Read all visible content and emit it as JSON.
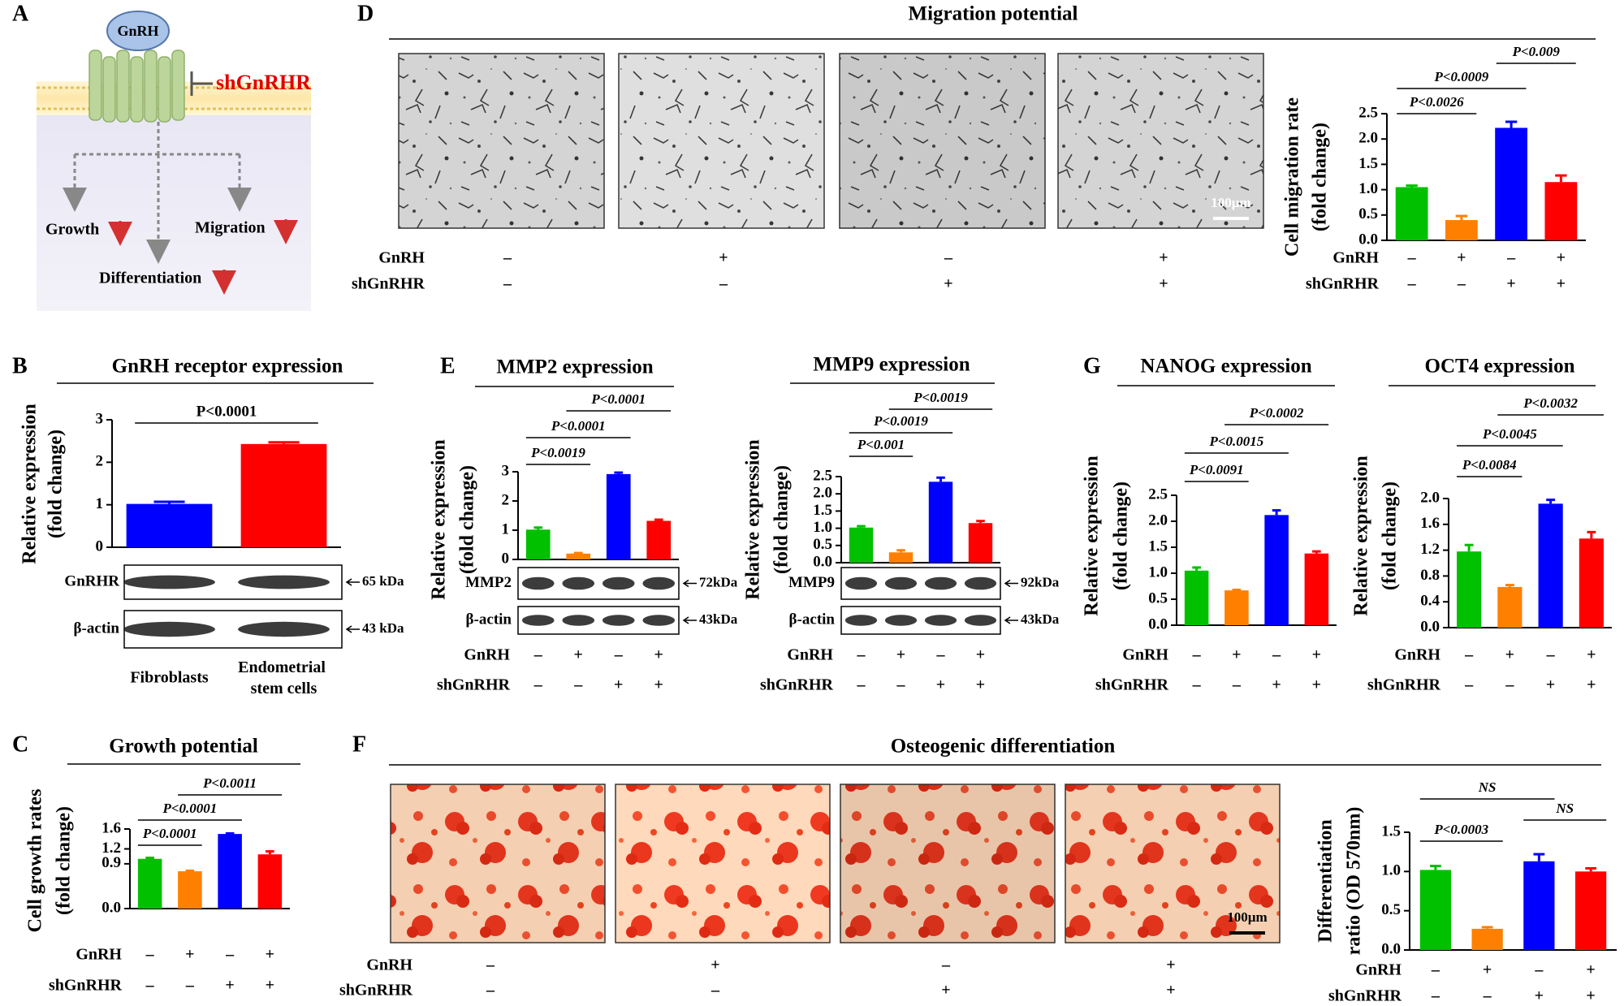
{
  "panel_labels": [
    "A",
    "B",
    "C",
    "D",
    "E",
    "F",
    "G"
  ],
  "schematic": {
    "ligand": "GnRH",
    "inhibitor": "shGnRHR",
    "outcomes": [
      "Growth",
      "Migration",
      "Differentiation"
    ]
  },
  "chart_data": [
    {
      "type": "bar",
      "title": "GnRH receptor expression",
      "ylabel": [
        "Relative expression",
        "(fold change)"
      ],
      "categories": [
        "Fibroblasts",
        "Endometrial stem cells"
      ],
      "values": [
        1.02,
        2.43
      ],
      "errors": [
        0.05,
        0.04
      ],
      "colors": [
        "#0000ff",
        "#ff0000"
      ],
      "ylim": [
        0,
        3
      ],
      "yticks": [
        0,
        1,
        2,
        3
      ],
      "annotations": [
        {
          "label": "P<0.0001",
          "from": 0,
          "to": 1
        }
      ],
      "annotation_italic": false,
      "blot": {
        "rows": [
          "GnRHR",
          "β-actin"
        ],
        "sizes": [
          "65 kDa",
          "43 kDa"
        ]
      }
    },
    {
      "type": "bar",
      "title": "Growth potential",
      "ylabel": [
        "Cell growth rates",
        "(fold change)"
      ],
      "values": [
        1.0,
        0.75,
        1.5,
        1.09
      ],
      "errors": [
        0.02,
        0.01,
        0.01,
        0.06
      ],
      "colors": [
        "#00c000",
        "#ff8000",
        "#0000ff",
        "#ff0000"
      ],
      "ylim": [
        0,
        1.6
      ],
      "yticks": [
        {
          "value": 0,
          "label": "0.0"
        },
        0.9,
        1.2,
        1.6
      ],
      "annotations": [
        {
          "label": "P<0.0001",
          "from": 0,
          "to": 1
        },
        {
          "label": "P<0.0001",
          "from": 0,
          "to": 2
        },
        {
          "label": "P<0.0011",
          "from": 1,
          "to": 3
        }
      ],
      "annotation_italic": true,
      "treatments": [
        {
          "name": "GnRH",
          "signs": [
            "–",
            "+",
            "–",
            "+"
          ]
        },
        {
          "name": "shGnRHR",
          "signs": [
            "–",
            "–",
            "+",
            "+"
          ]
        }
      ]
    },
    {
      "type": "bar",
      "title": "Migration potential",
      "scale_bar": "100µm",
      "ylabel": [
        "Cell migration rate",
        "(fold change)"
      ],
      "values": [
        1.05,
        0.4,
        2.22,
        1.15
      ],
      "errors": [
        0.03,
        0.08,
        0.12,
        0.13
      ],
      "colors": [
        "#00c000",
        "#ff8000",
        "#0000ff",
        "#ff0000"
      ],
      "ylim": [
        0,
        2.5
      ],
      "yticks": [
        {
          "value": 0,
          "label": "0.0"
        },
        0.5,
        {
          "value": 1,
          "label": "1.0"
        },
        1.5,
        {
          "value": 2,
          "label": "2.0"
        },
        2.5
      ],
      "annotations": [
        {
          "label": "P<0.0026",
          "from": 0,
          "to": 1
        },
        {
          "label": "P<0.0009",
          "from": 0,
          "to": 2
        },
        {
          "label": "P<0.009",
          "from": 2,
          "to": 3
        }
      ],
      "annotation_italic": true,
      "treatments": [
        {
          "name": "GnRH",
          "signs": [
            "–",
            "+",
            "–",
            "+"
          ]
        },
        {
          "name": "shGnRHR",
          "signs": [
            "–",
            "–",
            "+",
            "+"
          ]
        }
      ]
    },
    {
      "type": "bar",
      "title": "MMP2 expression",
      "ylabel": [
        "Relative expression",
        "(fold change)"
      ],
      "values": [
        1.02,
        0.2,
        2.92,
        1.32
      ],
      "errors": [
        0.07,
        0.02,
        0.05,
        0.04
      ],
      "colors": [
        "#00c000",
        "#ff8000",
        "#0000ff",
        "#ff0000"
      ],
      "ylim": [
        0,
        3
      ],
      "yticks": [
        0,
        1,
        2,
        3
      ],
      "annotations": [
        {
          "label": "P<0.0019",
          "from": 0,
          "to": 1
        },
        {
          "label": "P<0.0001",
          "from": 0,
          "to": 2
        },
        {
          "label": "P<0.0001",
          "from": 1,
          "to": 3
        }
      ],
      "annotation_italic": true,
      "blot": {
        "rows": [
          "MMP2",
          "β-actin"
        ],
        "sizes": [
          "72kDa",
          "43kDa"
        ]
      },
      "treatments": [
        {
          "name": "GnRH",
          "signs": [
            "–",
            "+",
            "–",
            "+"
          ]
        },
        {
          "name": "shGnRHR",
          "signs": [
            "–",
            "–",
            "+",
            "+"
          ]
        }
      ]
    },
    {
      "type": "bar",
      "title": "MMP9 expression",
      "ylabel": [
        "Relative expression",
        "(fold change)"
      ],
      "values": [
        1.02,
        0.3,
        2.35,
        1.15
      ],
      "errors": [
        0.04,
        0.06,
        0.12,
        0.06
      ],
      "colors": [
        "#00c000",
        "#ff8000",
        "#0000ff",
        "#ff0000"
      ],
      "ylim": [
        0,
        2.5
      ],
      "yticks": [
        {
          "value": 0,
          "label": "0.0"
        },
        0.5,
        {
          "value": 1,
          "label": "1.0"
        },
        1.5,
        {
          "value": 2,
          "label": "2.0"
        },
        2.5
      ],
      "annotations": [
        {
          "label": "P<0.001",
          "from": 0,
          "to": 1
        },
        {
          "label": "P<0.0019",
          "from": 0,
          "to": 2
        },
        {
          "label": "P<0.0019",
          "from": 1,
          "to": 3
        }
      ],
      "annotation_italic": true,
      "blot": {
        "rows": [
          "MMP9",
          "β-actin"
        ],
        "sizes": [
          "92kDa",
          "43kDa"
        ]
      },
      "treatments": [
        {
          "name": "GnRH",
          "signs": [
            "–",
            "+",
            "–",
            "+"
          ]
        },
        {
          "name": "shGnRHR",
          "signs": [
            "–",
            "–",
            "+",
            "+"
          ]
        }
      ]
    },
    {
      "type": "bar",
      "title": "NANOG expression",
      "ylabel": [
        "Relative expression",
        "(fold change)"
      ],
      "values": [
        1.05,
        0.67,
        2.12,
        1.38
      ],
      "errors": [
        0.06,
        0.01,
        0.09,
        0.04
      ],
      "colors": [
        "#00c000",
        "#ff8000",
        "#0000ff",
        "#ff0000"
      ],
      "ylim": [
        0,
        2.5
      ],
      "yticks": [
        {
          "value": 0,
          "label": "0.0"
        },
        0.5,
        {
          "value": 1,
          "label": "1.0"
        },
        1.5,
        {
          "value": 2,
          "label": "2.0"
        },
        2.5
      ],
      "annotations": [
        {
          "label": "P<0.0091",
          "from": 0,
          "to": 1
        },
        {
          "label": "P<0.0015",
          "from": 0,
          "to": 2
        },
        {
          "label": "P<0.0002",
          "from": 1,
          "to": 3
        }
      ],
      "annotation_italic": true,
      "treatments": [
        {
          "name": "GnRH",
          "signs": [
            "–",
            "+",
            "–",
            "+"
          ]
        },
        {
          "name": "shGnRHR",
          "signs": [
            "–",
            "–",
            "+",
            "+"
          ]
        }
      ]
    },
    {
      "type": "bar",
      "title": "OCT4 expression",
      "ylabel": [
        "Relative expression",
        "(fold change)"
      ],
      "values": [
        1.18,
        0.63,
        1.92,
        1.38
      ],
      "errors": [
        0.1,
        0.03,
        0.06,
        0.1
      ],
      "colors": [
        "#00c000",
        "#ff8000",
        "#0000ff",
        "#ff0000"
      ],
      "ylim": [
        0,
        2
      ],
      "yticks": [
        {
          "value": 0,
          "label": "0.0"
        },
        0.4,
        0.8,
        1.2,
        1.6,
        {
          "value": 2,
          "label": "2.0"
        }
      ],
      "annotations": [
        {
          "label": "P<0.0084",
          "from": 0,
          "to": 1
        },
        {
          "label": "P<0.0045",
          "from": 0,
          "to": 2
        },
        {
          "label": "P<0.0032",
          "from": 1,
          "to": 3
        }
      ],
      "annotation_italic": true,
      "treatments": [
        {
          "name": "GnRH",
          "signs": [
            "–",
            "+",
            "–",
            "+"
          ]
        },
        {
          "name": "shGnRHR",
          "signs": [
            "–",
            "–",
            "+",
            "+"
          ]
        }
      ]
    },
    {
      "type": "bar",
      "title": "Osteogenic differentiation",
      "scale_bar": "100µm",
      "ylabel": [
        "Differentiation",
        "ratio (OD 570nm)"
      ],
      "values": [
        1.02,
        0.27,
        1.13,
        1.0
      ],
      "errors": [
        0.05,
        0.02,
        0.09,
        0.04
      ],
      "colors": [
        "#00c000",
        "#ff8000",
        "#0000ff",
        "#ff0000"
      ],
      "ylim": [
        0,
        1.5
      ],
      "yticks": [
        {
          "value": 0,
          "label": "0.0"
        },
        0.5,
        {
          "value": 1,
          "label": "1.0"
        },
        1.5
      ],
      "annotations": [
        {
          "label": "P<0.0003",
          "from": 0,
          "to": 1
        },
        {
          "label": "NS",
          "from": 2,
          "to": 3
        },
        {
          "label": "NS",
          "from": 0,
          "to": 2
        }
      ],
      "annotation_italic": true,
      "treatments": [
        {
          "name": "GnRH",
          "signs": [
            "–",
            "+",
            "–",
            "+"
          ]
        },
        {
          "name": "shGnRHR",
          "signs": [
            "–",
            "–",
            "+",
            "+"
          ]
        }
      ]
    }
  ]
}
